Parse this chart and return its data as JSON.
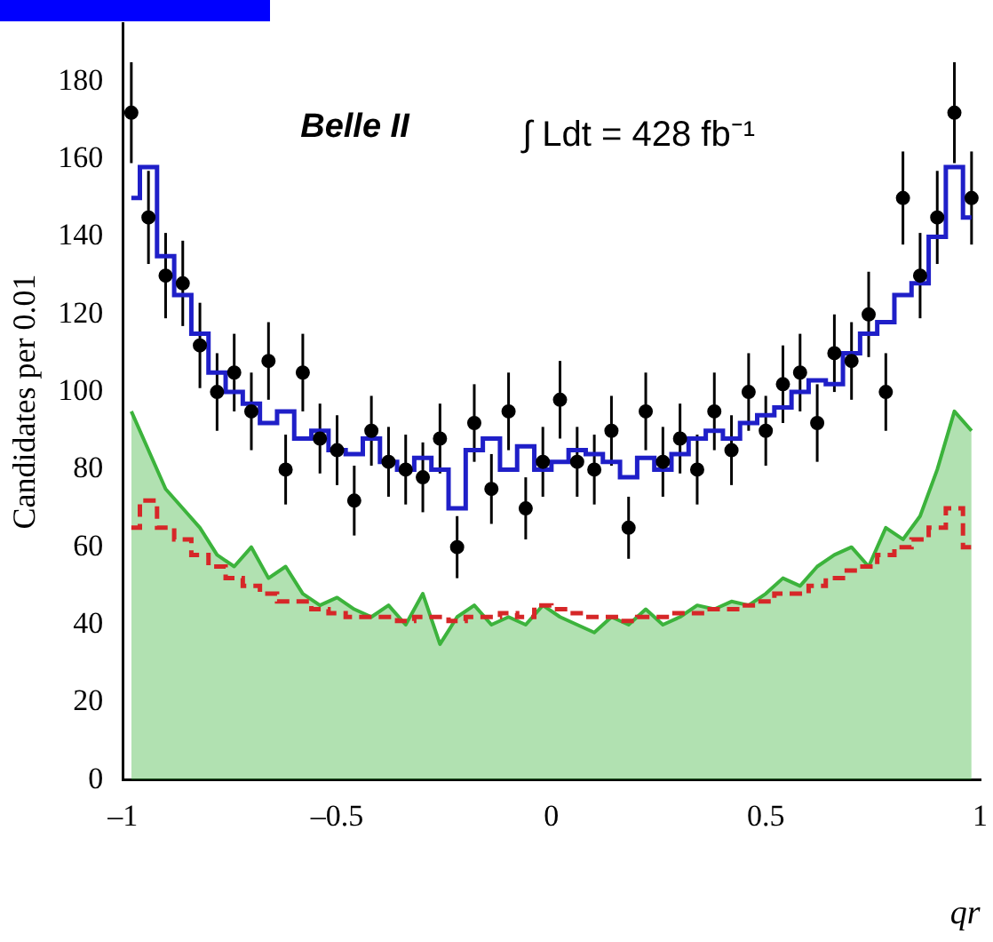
{
  "chart_data": {
    "type": "area",
    "xlabel": "qr",
    "ylabel": "Candidates per 0.01",
    "annotations": [
      "Belle II",
      "∫ Ldt = 428 fb⁻¹"
    ],
    "series": [
      {
        "color": "#3cb33c",
        "x": [
          -0.98,
          -0.94,
          -0.9,
          -0.86,
          -0.82,
          -0.78,
          -0.74,
          -0.7,
          -0.66,
          -0.62,
          -0.58,
          -0.54,
          -0.5,
          -0.46,
          -0.42,
          -0.38,
          -0.34,
          -0.3,
          -0.26,
          -0.22,
          -0.18,
          -0.14,
          -0.1,
          -0.06,
          -0.02,
          0.02,
          0.06,
          0.1,
          0.14,
          0.18,
          0.22,
          0.26,
          0.3,
          0.34,
          0.38,
          0.42,
          0.46,
          0.5,
          0.54,
          0.58,
          0.62,
          0.66,
          0.7,
          0.74,
          0.78,
          0.82,
          0.86,
          0.9,
          0.94,
          0.98
        ],
        "values": [
          95,
          85,
          75,
          70,
          65,
          58,
          55,
          60,
          52,
          55,
          48,
          45,
          47,
          44,
          42,
          45,
          40,
          48,
          35,
          42,
          45,
          40,
          42,
          40,
          45,
          42,
          40,
          38,
          42,
          40,
          44,
          40,
          42,
          45,
          44,
          46,
          45,
          48,
          52,
          50,
          55,
          58,
          60,
          55,
          65,
          62,
          68,
          80,
          95,
          90
        ]
      },
      {
        "type": "step",
        "color": "#d62728",
        "line_style": "dashed",
        "x": [
          -0.98,
          -0.94,
          -0.9,
          -0.86,
          -0.82,
          -0.78,
          -0.74,
          -0.7,
          -0.66,
          -0.62,
          -0.58,
          -0.54,
          -0.5,
          -0.46,
          -0.42,
          -0.38,
          -0.34,
          -0.3,
          -0.26,
          -0.22,
          -0.18,
          -0.14,
          -0.1,
          -0.06,
          -0.02,
          0.02,
          0.06,
          0.1,
          0.14,
          0.18,
          0.22,
          0.26,
          0.3,
          0.34,
          0.38,
          0.42,
          0.46,
          0.5,
          0.54,
          0.58,
          0.62,
          0.66,
          0.7,
          0.74,
          0.78,
          0.82,
          0.86,
          0.9,
          0.94,
          0.98
        ],
        "values": [
          65,
          72,
          65,
          62,
          58,
          55,
          52,
          50,
          48,
          46,
          46,
          44,
          43,
          42,
          42,
          42,
          41,
          42,
          42,
          41,
          42,
          42,
          43,
          42,
          45,
          44,
          43,
          42,
          42,
          41,
          42,
          42,
          43,
          43,
          44,
          44,
          45,
          46,
          48,
          48,
          50,
          52,
          54,
          55,
          58,
          60,
          62,
          65,
          70,
          60
        ]
      },
      {
        "type": "step",
        "color": "#1f1fc8",
        "x": [
          -0.98,
          -0.94,
          -0.9,
          -0.86,
          -0.82,
          -0.78,
          -0.74,
          -0.7,
          -0.66,
          -0.62,
          -0.58,
          -0.54,
          -0.5,
          -0.46,
          -0.42,
          -0.38,
          -0.34,
          -0.3,
          -0.26,
          -0.22,
          -0.18,
          -0.14,
          -0.1,
          -0.06,
          -0.02,
          0.02,
          0.06,
          0.1,
          0.14,
          0.18,
          0.22,
          0.26,
          0.3,
          0.34,
          0.38,
          0.42,
          0.46,
          0.5,
          0.54,
          0.58,
          0.62,
          0.66,
          0.7,
          0.74,
          0.78,
          0.82,
          0.86,
          0.9,
          0.94,
          0.98
        ],
        "values": [
          150,
          158,
          135,
          125,
          115,
          105,
          100,
          97,
          92,
          95,
          88,
          90,
          85,
          84,
          88,
          82,
          80,
          83,
          80,
          70,
          85,
          88,
          80,
          86,
          80,
          82,
          85,
          84,
          82,
          78,
          83,
          80,
          84,
          88,
          90,
          88,
          92,
          94,
          96,
          100,
          103,
          102,
          110,
          115,
          118,
          125,
          128,
          140,
          158,
          145
        ]
      },
      {
        "type": "scatter",
        "color": "#000000",
        "x": [
          -0.98,
          -0.94,
          -0.9,
          -0.86,
          -0.82,
          -0.78,
          -0.74,
          -0.7,
          -0.66,
          -0.62,
          -0.58,
          -0.54,
          -0.5,
          -0.46,
          -0.42,
          -0.38,
          -0.34,
          -0.3,
          -0.26,
          -0.22,
          -0.18,
          -0.14,
          -0.1,
          -0.06,
          -0.02,
          0.02,
          0.06,
          0.1,
          0.14,
          0.18,
          0.22,
          0.26,
          0.3,
          0.34,
          0.38,
          0.42,
          0.46,
          0.5,
          0.54,
          0.58,
          0.62,
          0.66,
          0.7,
          0.74,
          0.78,
          0.82,
          0.86,
          0.9,
          0.94,
          0.98
        ],
        "values": [
          172,
          145,
          130,
          128,
          112,
          100,
          105,
          95,
          108,
          80,
          105,
          88,
          85,
          72,
          90,
          82,
          80,
          78,
          88,
          60,
          92,
          75,
          95,
          70,
          82,
          98,
          82,
          80,
          90,
          65,
          95,
          82,
          88,
          80,
          95,
          85,
          100,
          90,
          102,
          105,
          92,
          110,
          108,
          120,
          100,
          150,
          130,
          145,
          172,
          150
        ],
        "errors": [
          13,
          12,
          11,
          11,
          11,
          10,
          10,
          10,
          10,
          9,
          10,
          9,
          9,
          9,
          9,
          9,
          9,
          9,
          9,
          8,
          10,
          9,
          10,
          8,
          9,
          10,
          9,
          9,
          9,
          8,
          10,
          9,
          9,
          9,
          10,
          9,
          10,
          9,
          10,
          10,
          10,
          10,
          10,
          11,
          10,
          12,
          11,
          12,
          13,
          12
        ],
        "marker": "circle"
      }
    ],
    "xlim": [
      -1,
      1
    ],
    "xticks": [
      {
        "value": -1,
        "label": "–1"
      },
      {
        "value": -0.5,
        "label": "–0.5"
      },
      0,
      0.5,
      1
    ],
    "ylim": [
      0,
      195
    ],
    "yticks": [
      0,
      20,
      40,
      60,
      80,
      100,
      120,
      140,
      160,
      180
    ],
    "legend": false
  }
}
